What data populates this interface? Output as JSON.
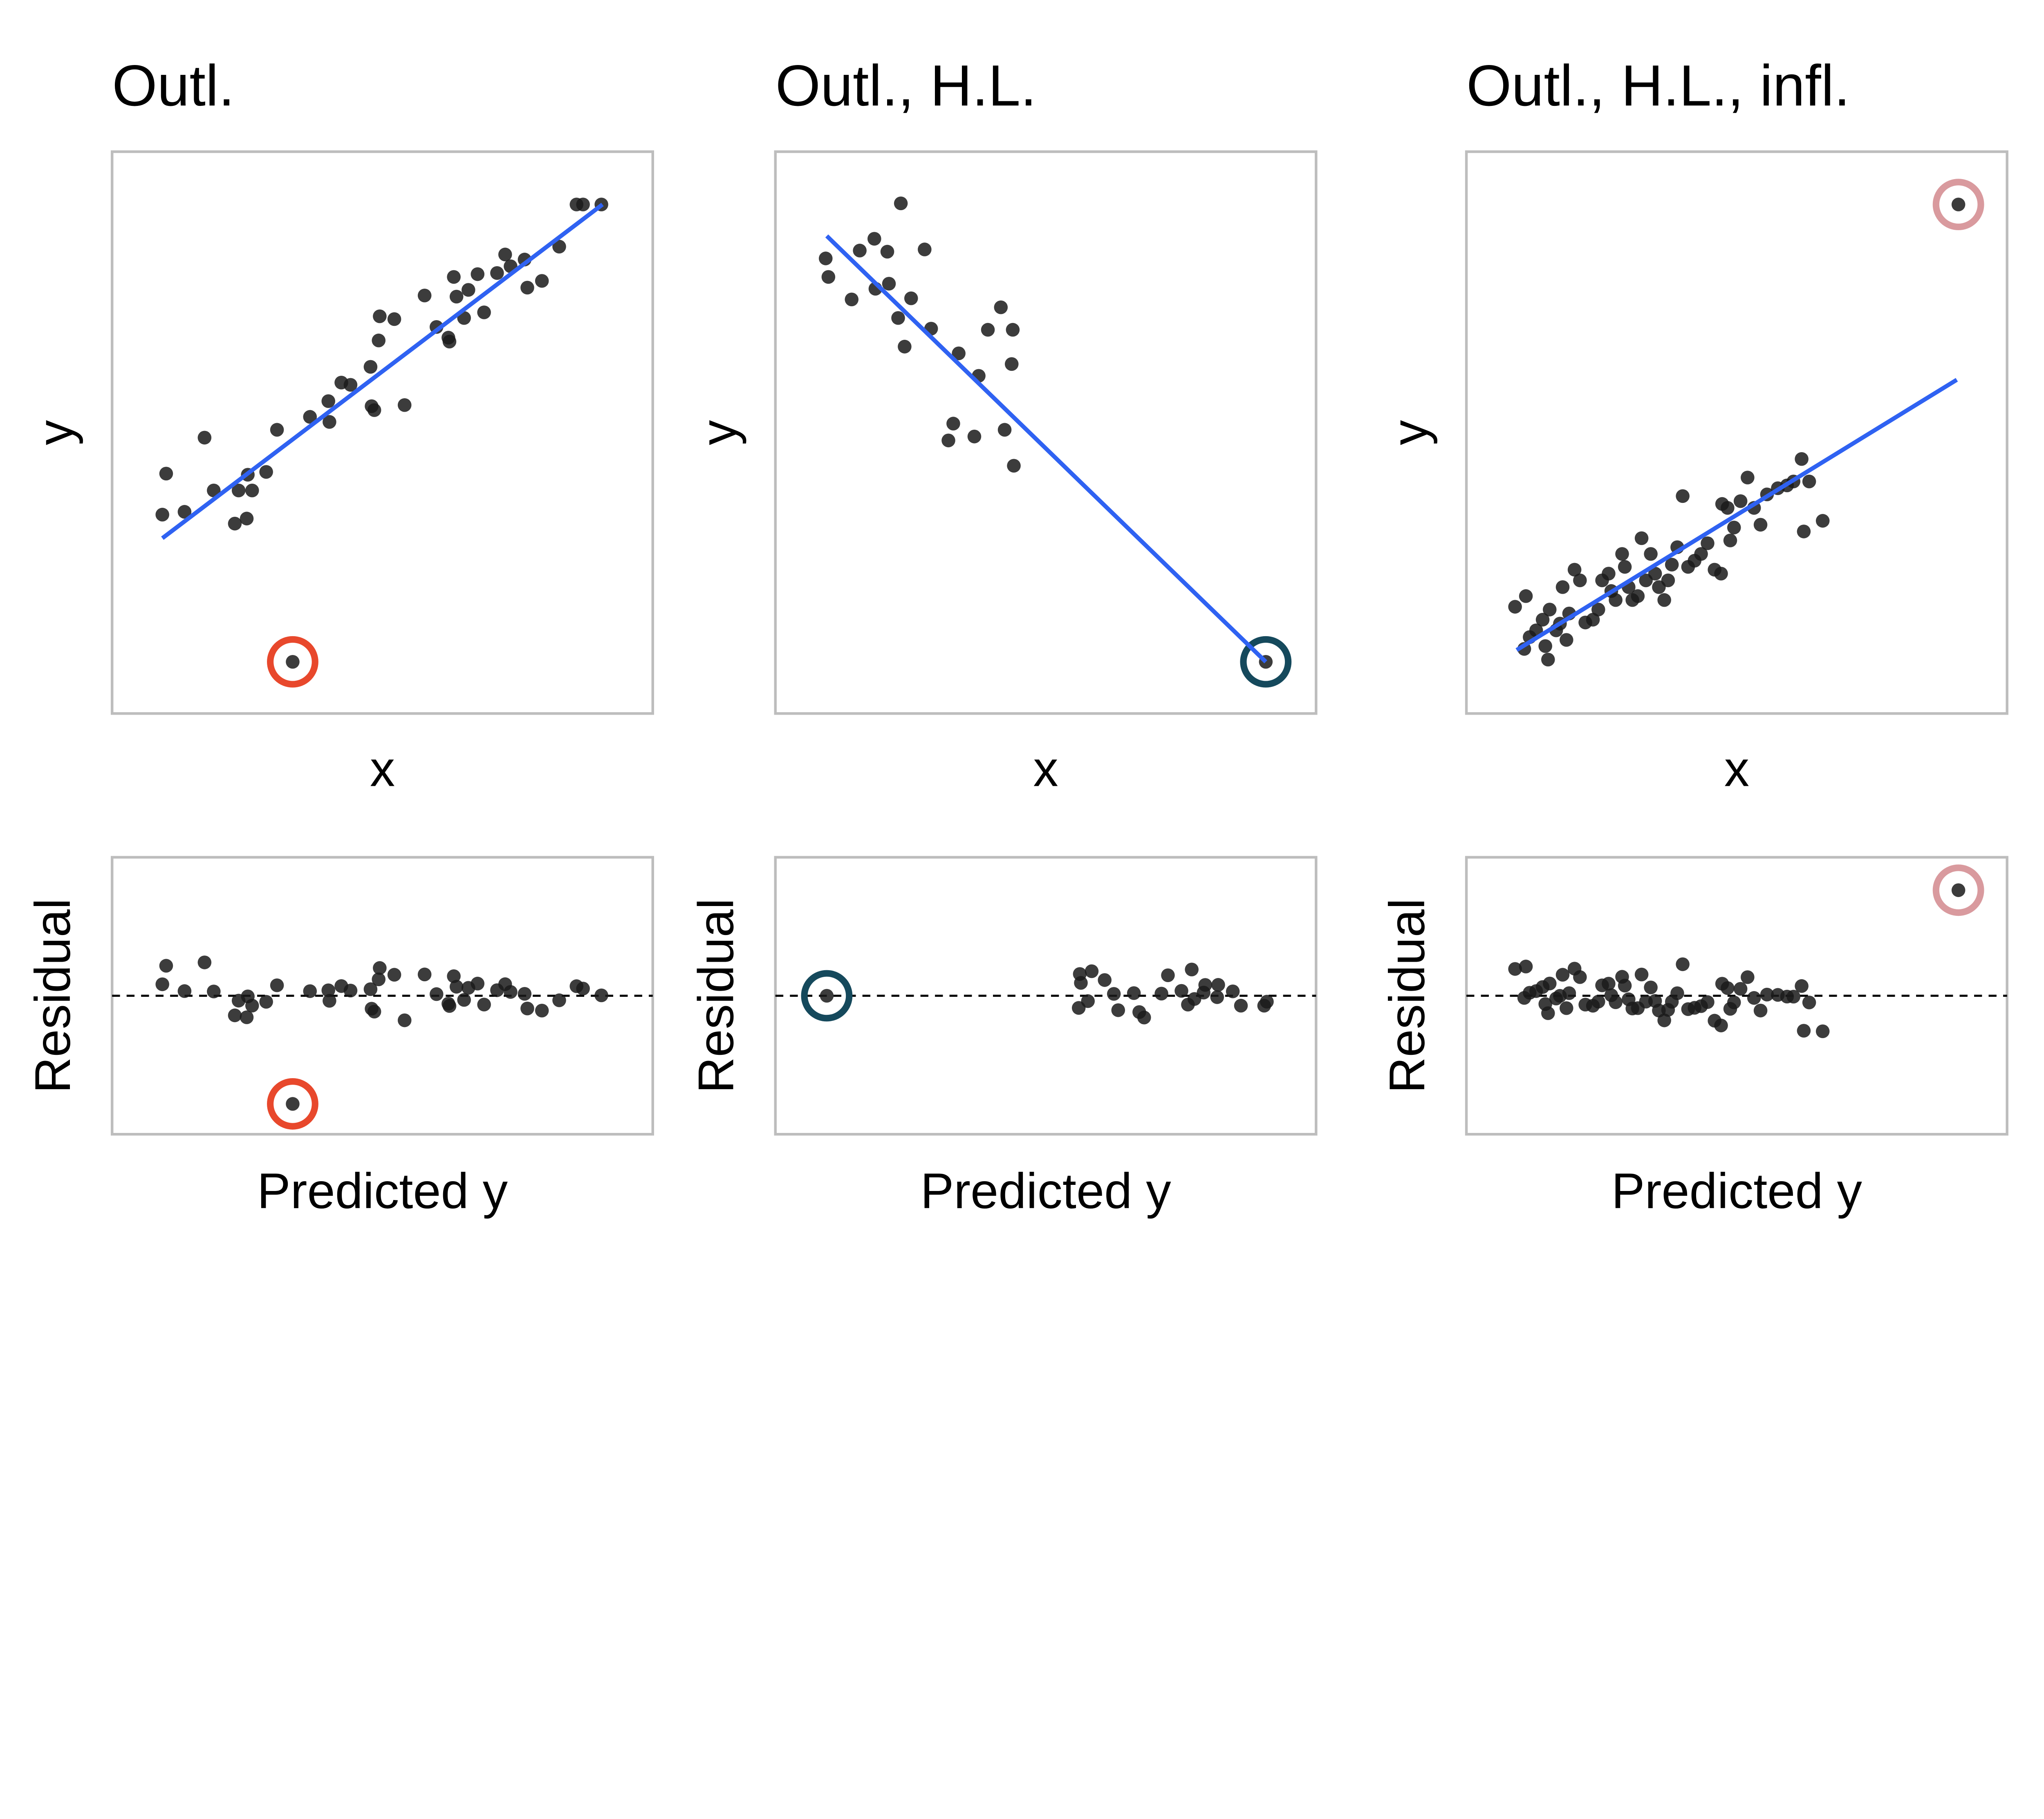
{
  "chart_data": [
    {
      "type": "scatter",
      "title": "Outl.",
      "xlabel": "x",
      "ylabel": "y",
      "residual_xlabel": "Predicted y",
      "residual_ylabel": "Residual",
      "xlim": [
        0,
        10
      ],
      "ylim": [
        0,
        10
      ],
      "residual_ylim": [
        -5.07,
        5.07
      ],
      "highlight_color": "#e8482c",
      "fit_line": [
        [
          0.93,
          3.12
        ],
        [
          9.07,
          9.06
        ]
      ],
      "highlight_point": [
        3.34,
        0.92
      ],
      "points": [
        [
          0.93,
          3.54
        ],
        [
          1.0,
          4.27
        ],
        [
          1.34,
          3.59
        ],
        [
          1.71,
          4.91
        ],
        [
          1.88,
          3.97
        ],
        [
          2.27,
          3.38
        ],
        [
          2.34,
          3.97
        ],
        [
          2.49,
          3.47
        ],
        [
          2.51,
          4.25
        ],
        [
          2.59,
          3.97
        ],
        [
          2.85,
          4.3
        ],
        [
          3.05,
          5.05
        ],
        [
          3.66,
          5.28
        ],
        [
          4.0,
          5.56
        ],
        [
          4.02,
          5.19
        ],
        [
          4.24,
          5.89
        ],
        [
          4.41,
          5.85
        ],
        [
          4.78,
          6.17
        ],
        [
          4.8,
          5.47
        ],
        [
          4.85,
          5.4
        ],
        [
          4.93,
          6.64
        ],
        [
          4.95,
          7.07
        ],
        [
          5.22,
          7.02
        ],
        [
          5.41,
          5.49
        ],
        [
          5.78,
          7.44
        ],
        [
          6.0,
          6.88
        ],
        [
          6.22,
          6.69
        ],
        [
          6.24,
          6.62
        ],
        [
          6.32,
          7.77
        ],
        [
          6.37,
          7.42
        ],
        [
          6.51,
          7.04
        ],
        [
          6.59,
          7.54
        ],
        [
          6.76,
          7.82
        ],
        [
          6.88,
          7.14
        ],
        [
          7.12,
          7.84
        ],
        [
          7.27,
          8.17
        ],
        [
          7.37,
          7.96
        ],
        [
          7.63,
          8.08
        ],
        [
          7.68,
          7.58
        ],
        [
          7.95,
          7.7
        ],
        [
          8.27,
          8.31
        ],
        [
          8.59,
          9.06
        ],
        [
          8.71,
          9.06
        ],
        [
          9.05,
          9.06
        ]
      ]
    },
    {
      "type": "scatter",
      "title": "Outl., H.L.",
      "xlabel": "x",
      "ylabel": "y",
      "residual_xlabel": "Predicted y",
      "residual_ylabel": "Residual",
      "xlim": [
        0,
        10
      ],
      "ylim": [
        0,
        10
      ],
      "residual_ylim": [
        -9.8,
        9.8
      ],
      "highlight_color": "#15495c",
      "fit_line": [
        [
          0.95,
          8.5
        ],
        [
          9.07,
          0.92
        ]
      ],
      "highlight_point": [
        9.07,
        0.92
      ],
      "points": [
        [
          0.93,
          8.1
        ],
        [
          0.98,
          7.77
        ],
        [
          1.41,
          7.37
        ],
        [
          1.56,
          8.24
        ],
        [
          1.83,
          8.45
        ],
        [
          1.85,
          7.56
        ],
        [
          2.07,
          8.22
        ],
        [
          2.1,
          7.65
        ],
        [
          2.27,
          7.04
        ],
        [
          2.32,
          9.08
        ],
        [
          2.39,
          6.53
        ],
        [
          2.51,
          7.39
        ],
        [
          2.76,
          8.26
        ],
        [
          2.88,
          6.85
        ],
        [
          3.2,
          4.86
        ],
        [
          3.29,
          5.16
        ],
        [
          3.39,
          6.41
        ],
        [
          3.68,
          4.93
        ],
        [
          3.76,
          6.01
        ],
        [
          3.93,
          6.83
        ],
        [
          4.17,
          7.23
        ],
        [
          4.24,
          5.05
        ],
        [
          4.37,
          6.22
        ],
        [
          4.39,
          6.83
        ],
        [
          4.41,
          4.41
        ]
      ]
    },
    {
      "type": "scatter",
      "title": "Outl., H.L., infl.",
      "xlabel": "x",
      "ylabel": "y",
      "residual_xlabel": "Predicted y",
      "residual_ylabel": "Residual",
      "xlim": [
        0,
        10
      ],
      "ylim": [
        0,
        10
      ],
      "residual_ylim": [
        -4.07,
        4.07
      ],
      "highlight_color": "#d99a9e",
      "fit_line": [
        [
          0.93,
          1.13
        ],
        [
          9.07,
          5.94
        ]
      ],
      "highlight_point": [
        9.1,
        9.06
      ],
      "points": [
        [
          0.9,
          1.9
        ],
        [
          1.1,
          2.09
        ],
        [
          1.17,
          1.36
        ],
        [
          1.07,
          1.15
        ],
        [
          1.29,
          1.48
        ],
        [
          1.41,
          1.67
        ],
        [
          1.46,
          1.2
        ],
        [
          1.51,
          0.96
        ],
        [
          1.54,
          1.85
        ],
        [
          1.66,
          1.48
        ],
        [
          1.73,
          1.6
        ],
        [
          1.78,
          2.25
        ],
        [
          1.85,
          1.31
        ],
        [
          1.9,
          1.78
        ],
        [
          2.0,
          2.56
        ],
        [
          2.1,
          2.37
        ],
        [
          2.2,
          1.62
        ],
        [
          2.34,
          1.67
        ],
        [
          2.44,
          1.85
        ],
        [
          2.51,
          2.37
        ],
        [
          2.63,
          2.49
        ],
        [
          2.68,
          2.18
        ],
        [
          2.76,
          2.02
        ],
        [
          2.88,
          2.84
        ],
        [
          2.93,
          2.61
        ],
        [
          3.0,
          2.25
        ],
        [
          3.07,
          2.02
        ],
        [
          3.17,
          2.09
        ],
        [
          3.24,
          3.12
        ],
        [
          3.32,
          2.37
        ],
        [
          3.41,
          2.84
        ],
        [
          3.49,
          2.49
        ],
        [
          3.56,
          2.25
        ],
        [
          3.66,
          2.02
        ],
        [
          3.73,
          2.37
        ],
        [
          3.8,
          2.65
        ],
        [
          3.9,
          2.96
        ],
        [
          4.0,
          3.87
        ],
        [
          4.1,
          2.61
        ],
        [
          4.22,
          2.72
        ],
        [
          4.34,
          2.84
        ],
        [
          4.46,
          3.03
        ],
        [
          4.59,
          2.56
        ],
        [
          4.71,
          2.49
        ],
        [
          4.73,
          3.73
        ],
        [
          4.83,
          3.66
        ],
        [
          4.88,
          3.08
        ],
        [
          4.95,
          3.31
        ],
        [
          5.07,
          3.78
        ],
        [
          5.2,
          4.2
        ],
        [
          5.32,
          3.66
        ],
        [
          5.44,
          3.36
        ],
        [
          5.56,
          3.9
        ],
        [
          5.76,
          4.01
        ],
        [
          5.93,
          4.06
        ],
        [
          6.05,
          4.13
        ],
        [
          6.2,
          4.53
        ],
        [
          6.24,
          3.24
        ],
        [
          6.34,
          4.13
        ],
        [
          6.59,
          3.43
        ]
      ]
    }
  ]
}
